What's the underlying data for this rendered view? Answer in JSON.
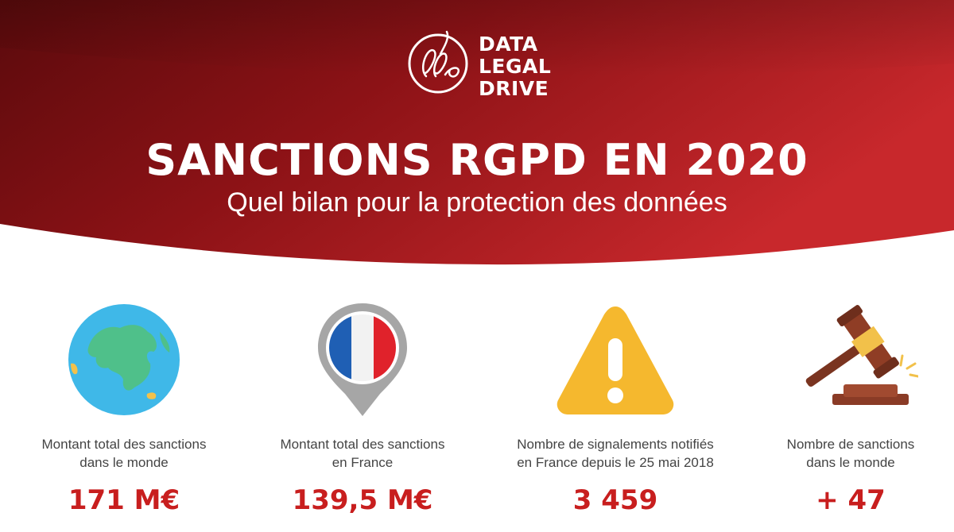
{
  "brand": {
    "line1": "DATA",
    "line2": "LEGAL",
    "line3": "DRIVE"
  },
  "header": {
    "title": "SANCTIONS RGPD EN 2020",
    "subtitle": "Quel bilan pour la protection des données"
  },
  "colors": {
    "accent": "#c81e1e",
    "banner_dark": "#5c0a0c",
    "banner_light": "#c4242a"
  },
  "stats": [
    {
      "icon": "globe-icon",
      "label_line1": "Montant total des sanctions",
      "label_line2": "dans le monde",
      "value": "171 M€"
    },
    {
      "icon": "france-pin-icon",
      "label_line1": "Montant total des sanctions",
      "label_line2": "en France",
      "value": "139,5 M€"
    },
    {
      "icon": "warning-icon",
      "label_line1": "Nombre de signalements notifiés",
      "label_line2": "en France depuis le 25 mai 2018",
      "value": "3 459"
    },
    {
      "icon": "gavel-icon",
      "label_line1": "Nombre de sanctions",
      "label_line2": "dans le monde",
      "value": "+ 47"
    }
  ]
}
